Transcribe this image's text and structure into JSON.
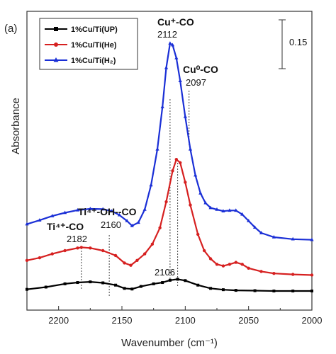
{
  "panel_label": "(a)",
  "chart_data": {
    "type": "line",
    "xlabel": "Wavenumber (cm⁻¹)",
    "ylabel": "Absorbance",
    "xlim": [
      2225,
      2000
    ],
    "x_ticks": [
      2200,
      2150,
      2100,
      2050,
      2000
    ],
    "scale_bar": {
      "label": "0.15",
      "value": 0.15
    },
    "legend": {
      "placement": "top-left"
    },
    "series": [
      {
        "name": "1%Cu/Ti(UP)",
        "color": "#000000",
        "marker": "square",
        "x": [
          2225,
          2210,
          2195,
          2185,
          2175,
          2165,
          2155,
          2148,
          2142,
          2135,
          2125,
          2118,
          2112,
          2106,
          2100,
          2090,
          2080,
          2070,
          2060,
          2045,
          2030,
          2015,
          2000
        ],
        "y": [
          0.005,
          0.012,
          0.022,
          0.026,
          0.028,
          0.025,
          0.018,
          0.008,
          0.006,
          0.014,
          0.022,
          0.026,
          0.033,
          0.036,
          0.032,
          0.018,
          0.008,
          0.004,
          0.002,
          0.001,
          0.0,
          0.0,
          0.0
        ]
      },
      {
        "name": "1%Cu/Ti(He)",
        "color": "#d62020",
        "marker": "circle",
        "x": [
          2225,
          2215,
          2205,
          2195,
          2185,
          2182,
          2175,
          2165,
          2155,
          2148,
          2143,
          2138,
          2132,
          2126,
          2120,
          2115,
          2110,
          2107,
          2104,
          2100,
          2096,
          2090,
          2085,
          2080,
          2075,
          2070,
          2065,
          2060,
          2055,
          2050,
          2040,
          2030,
          2015,
          2000
        ],
        "y": [
          0.07,
          0.078,
          0.09,
          0.1,
          0.108,
          0.11,
          0.108,
          0.1,
          0.085,
          0.062,
          0.055,
          0.07,
          0.09,
          0.12,
          0.17,
          0.25,
          0.345,
          0.38,
          0.37,
          0.31,
          0.24,
          0.15,
          0.1,
          0.075,
          0.058,
          0.053,
          0.058,
          0.064,
          0.058,
          0.046,
          0.036,
          0.03,
          0.027,
          0.025
        ]
      },
      {
        "name": "1%Cu/Ti(H₂)",
        "color": "#1a2fd6",
        "marker": "triangle",
        "x": [
          2225,
          2215,
          2205,
          2195,
          2185,
          2175,
          2165,
          2158,
          2152,
          2146,
          2142,
          2137,
          2132,
          2127,
          2122,
          2118,
          2115,
          2112,
          2110,
          2107,
          2104,
          2100,
          2096,
          2092,
          2088,
          2084,
          2080,
          2075,
          2070,
          2065,
          2060,
          2055,
          2050,
          2045,
          2040,
          2030,
          2015,
          2000
        ],
        "y": [
          0.14,
          0.152,
          0.165,
          0.175,
          0.183,
          0.187,
          0.186,
          0.18,
          0.168,
          0.15,
          0.135,
          0.145,
          0.185,
          0.26,
          0.37,
          0.5,
          0.62,
          0.695,
          0.69,
          0.65,
          0.58,
          0.47,
          0.37,
          0.29,
          0.235,
          0.205,
          0.19,
          0.185,
          0.18,
          0.182,
          0.182,
          0.17,
          0.15,
          0.13,
          0.113,
          0.1,
          0.094,
          0.092
        ]
      }
    ],
    "annotations": [
      {
        "id": "cu_plus_co",
        "label": "Cu⁺-CO",
        "number": "2112",
        "x": 2112
      },
      {
        "id": "cu0_co",
        "label": "Cu⁰-CO",
        "number": "2097",
        "x": 2097
      },
      {
        "id": "ti4_oh_co",
        "label": "Ti⁴⁺-OH--CO",
        "number": "2160",
        "x": 2160
      },
      {
        "id": "ti4_co",
        "label": "Ti⁴⁺-CO",
        "number": "2182",
        "x": 2182
      },
      {
        "id": "peak_2106",
        "label": "",
        "number": "2106",
        "x": 2106
      }
    ]
  }
}
